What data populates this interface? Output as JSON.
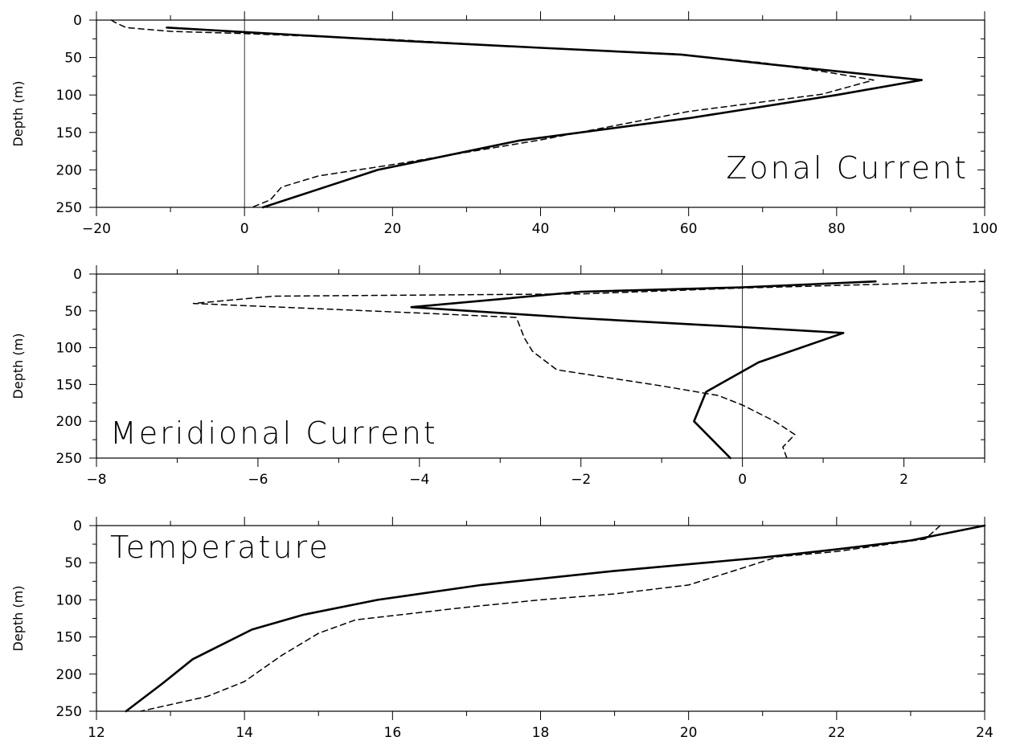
{
  "chart_data": [
    {
      "type": "line",
      "title": "Zonal Current",
      "ylabel": "Depth (m)",
      "xlabel": "",
      "xlim": [
        -20,
        100
      ],
      "ylim": [
        0,
        250
      ],
      "y_inverted": true,
      "xticks": [
        -20,
        0,
        20,
        40,
        60,
        80,
        100
      ],
      "yticks": [
        0,
        50,
        100,
        150,
        200,
        250
      ],
      "zero_line": 0,
      "legend": "none",
      "grid": false,
      "series": [
        {
          "style": "solid",
          "points": [
            [
              -10.5,
              10
            ],
            [
              0,
              16
            ],
            [
              20,
              27
            ],
            [
              40,
              37
            ],
            [
              59,
              46
            ],
            [
              70,
              58
            ],
            [
              91.5,
              80
            ],
            [
              80,
              100
            ],
            [
              60,
              131
            ],
            [
              37,
              161
            ],
            [
              18,
              200
            ],
            [
              2.5,
              250
            ]
          ]
        },
        {
          "style": "dashed",
          "points": [
            [
              -18,
              0
            ],
            [
              -17.5,
              3
            ],
            [
              -16,
              10
            ],
            [
              -10,
              15
            ],
            [
              0,
              18
            ],
            [
              20,
              26
            ],
            [
              40,
              37
            ],
            [
              58,
              45
            ],
            [
              70,
              57
            ],
            [
              79,
              70
            ],
            [
              85,
              80
            ],
            [
              78,
              99
            ],
            [
              60,
              122
            ],
            [
              40,
              160
            ],
            [
              20,
              193
            ],
            [
              10,
              208
            ],
            [
              5,
              223
            ],
            [
              3.5,
              240
            ],
            [
              1,
              250
            ]
          ]
        }
      ]
    },
    {
      "type": "line",
      "title": "Meridional Current",
      "ylabel": "Depth (m)",
      "xlabel": "",
      "xlim": [
        -8,
        3
      ],
      "ylim": [
        0,
        250
      ],
      "y_inverted": true,
      "xticks": [
        -8,
        -6,
        -4,
        -2,
        0,
        2
      ],
      "yticks": [
        0,
        50,
        100,
        150,
        200,
        250
      ],
      "zero_line": 0,
      "legend": "none",
      "grid": false,
      "series": [
        {
          "style": "solid",
          "points": [
            [
              1.65,
              10
            ],
            [
              0,
              18
            ],
            [
              -2,
              24
            ],
            [
              -4.1,
              45
            ],
            [
              -2,
              60
            ],
            [
              0,
              72
            ],
            [
              1.25,
              80
            ],
            [
              0.2,
              120
            ],
            [
              -0.45,
              160
            ],
            [
              -0.6,
              200
            ],
            [
              -0.15,
              250
            ]
          ]
        },
        {
          "style": "dashed",
          "points": [
            [
              3.0,
              10
            ],
            [
              0,
              19
            ],
            [
              -2,
              27
            ],
            [
              -5.8,
              30
            ],
            [
              -6.8,
              40
            ],
            [
              -5.5,
              46
            ],
            [
              -4,
              53
            ],
            [
              -2.8,
              59
            ],
            [
              -2.7,
              87
            ],
            [
              -2.6,
              105
            ],
            [
              -2.3,
              130
            ],
            [
              -1,
              152
            ],
            [
              -0.3,
              165
            ],
            [
              0,
              178
            ],
            [
              0.4,
              200
            ],
            [
              0.65,
              218
            ],
            [
              0.5,
              235
            ],
            [
              0.55,
              250
            ]
          ]
        }
      ]
    },
    {
      "type": "line",
      "title": "Temperature",
      "ylabel": "Depth (m)",
      "xlabel": "",
      "xlim": [
        12,
        24
      ],
      "ylim": [
        0,
        250
      ],
      "y_inverted": true,
      "xticks": [
        12,
        14,
        16,
        18,
        20,
        22,
        24
      ],
      "yticks": [
        0,
        50,
        100,
        150,
        200,
        250
      ],
      "legend": "none",
      "grid": false,
      "series": [
        {
          "style": "solid",
          "points": [
            [
              24,
              0
            ],
            [
              23,
              20
            ],
            [
              22,
              32
            ],
            [
              21,
              43
            ],
            [
              19,
              61
            ],
            [
              17.2,
              80
            ],
            [
              15.8,
              100
            ],
            [
              14.8,
              120
            ],
            [
              14.1,
              140
            ],
            [
              13.3,
              180
            ],
            [
              12.9,
              212
            ],
            [
              12.4,
              250
            ]
          ]
        },
        {
          "style": "dashed",
          "points": [
            [
              23.4,
              0
            ],
            [
              23.2,
              18
            ],
            [
              22,
              35
            ],
            [
              21.2,
              42
            ],
            [
              20.8,
              55
            ],
            [
              20,
              80
            ],
            [
              19,
              92
            ],
            [
              18,
              100
            ],
            [
              17,
              110
            ],
            [
              15.5,
              127
            ],
            [
              15,
              145
            ],
            [
              14.5,
              175
            ],
            [
              14,
              210
            ],
            [
              13.5,
              230
            ],
            [
              12.6,
              250
            ]
          ]
        }
      ]
    }
  ]
}
